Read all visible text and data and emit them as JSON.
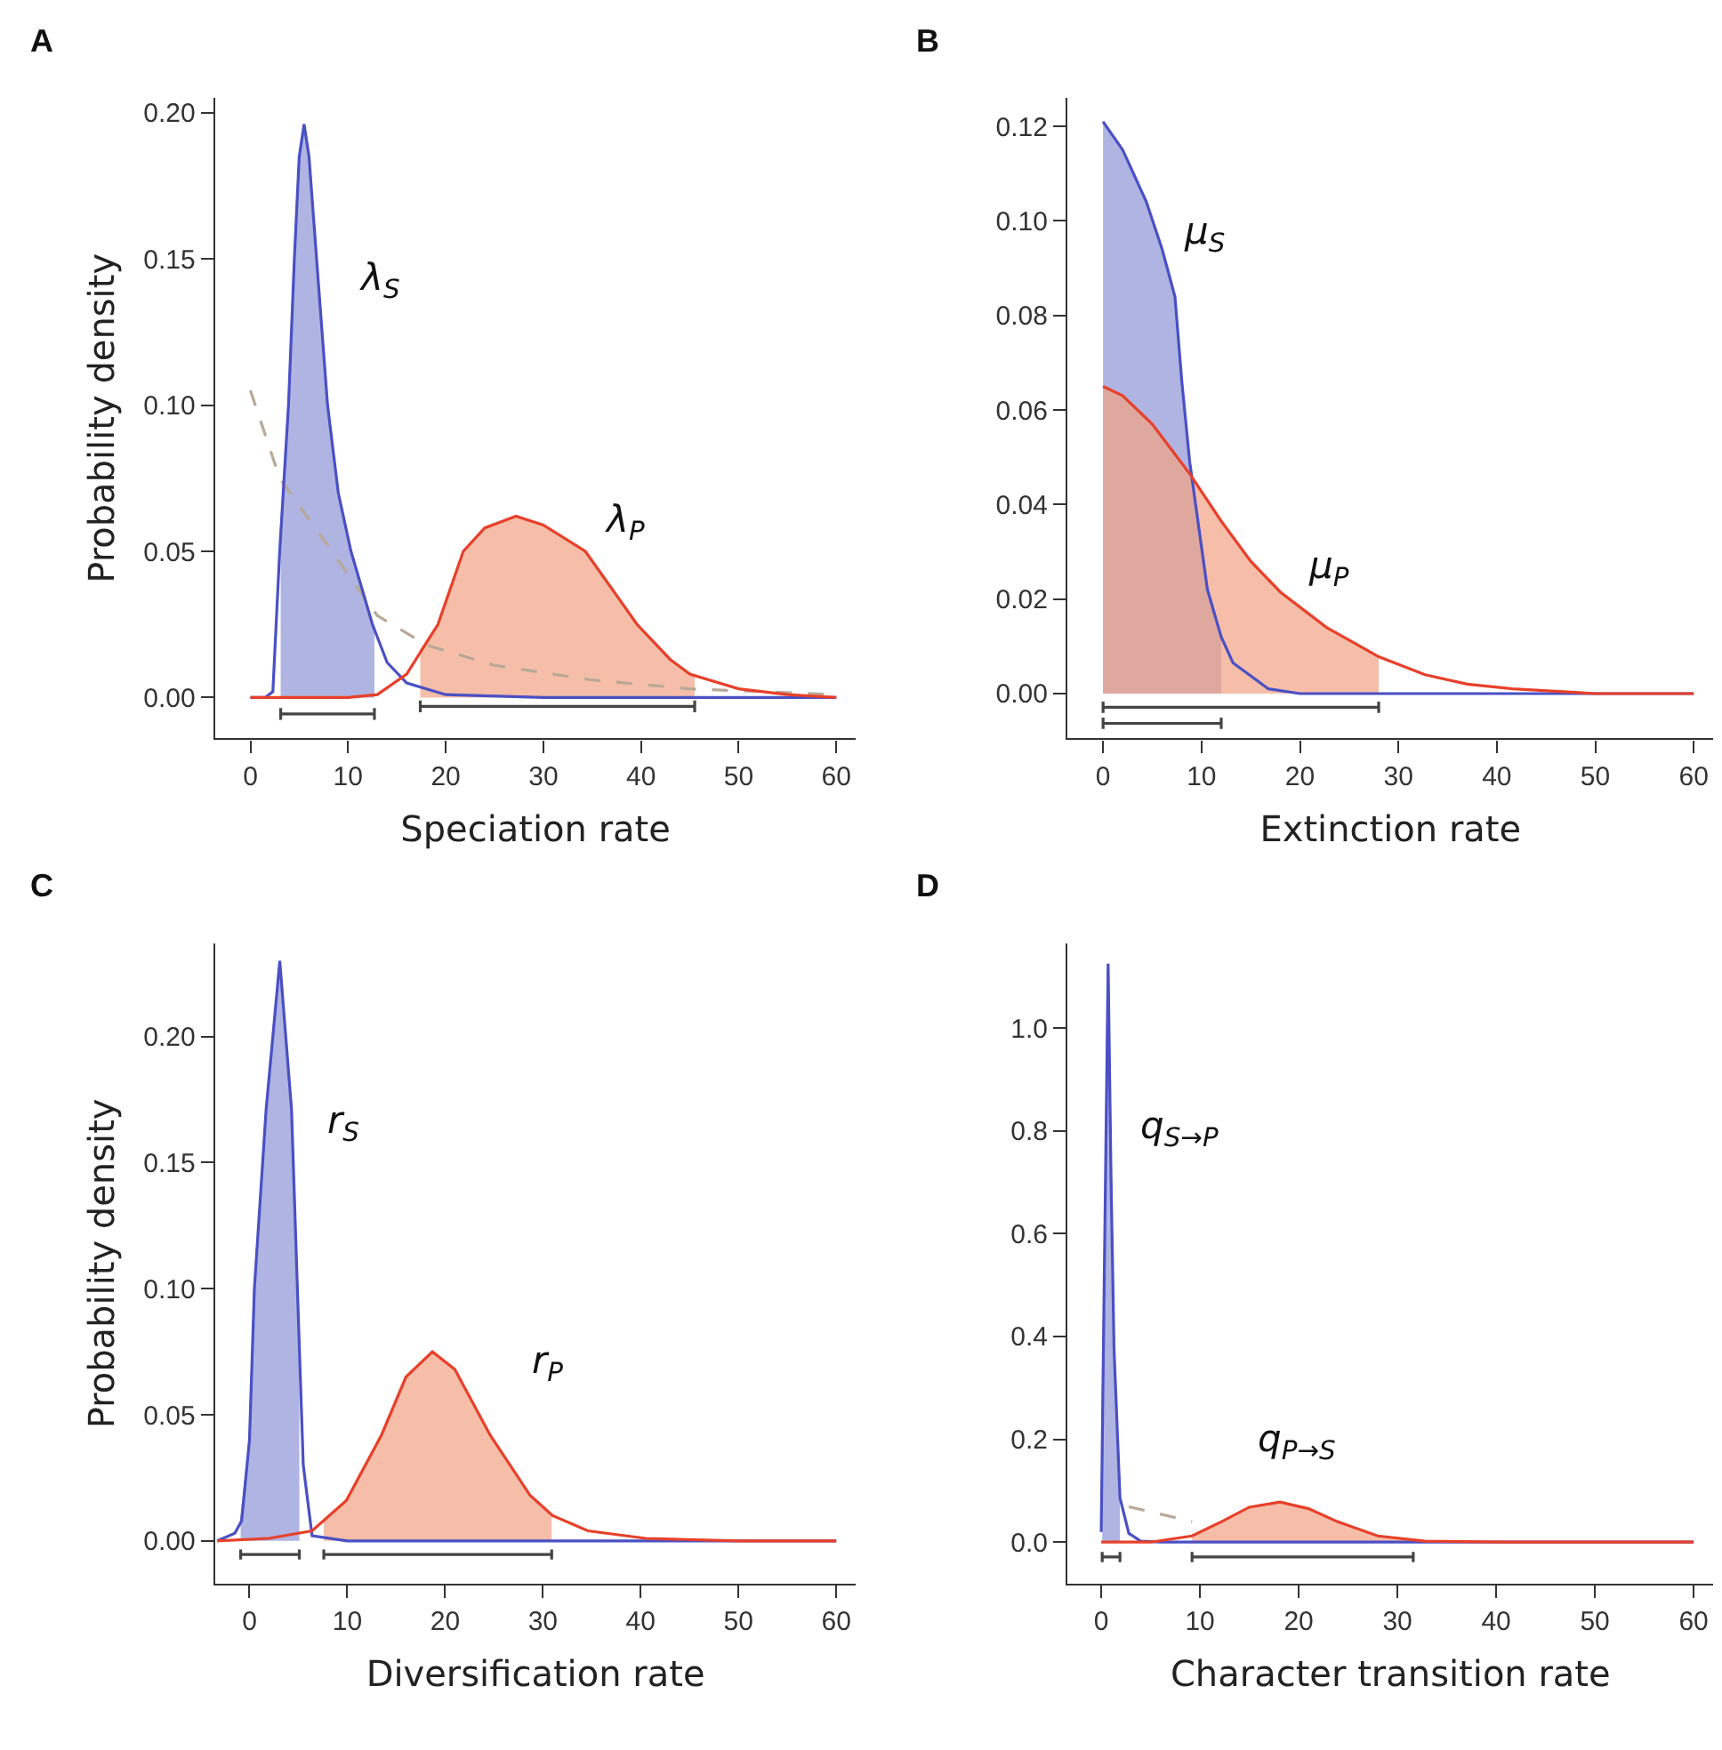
{
  "chart_data": [
    {
      "type": "line",
      "title": "A",
      "xlabel": "Speciation rate",
      "ylabel": "Probability density",
      "xlim": [
        -3.6,
        62
      ],
      "ylim": [
        -0.014,
        0.205
      ],
      "xticks": [
        0,
        10,
        20,
        30,
        40,
        50,
        60
      ],
      "yticks": [
        {
          "value": 0,
          "label": "0.00"
        },
        {
          "value": 0.05,
          "label": "0.05"
        },
        {
          "value": 0.1,
          "label": "0.10"
        },
        {
          "value": 0.15,
          "label": "0.15"
        },
        {
          "value": 0.2,
          "label": "0.20"
        }
      ],
      "line_style": "solid",
      "series": [
        {
          "type": "area",
          "color": "#8e94d6",
          "x": [
            3.1,
            3.9,
            4.5,
            5,
            5.5,
            6,
            7,
            7.9,
            9,
            10.3,
            12.5,
            12.7
          ],
          "values": [
            0.056,
            0.1,
            0.15,
            0.185,
            0.196,
            0.185,
            0.14,
            0.1,
            0.07,
            0.05,
            0.025,
            0.024
          ]
        },
        {
          "type": "area",
          "color": "#f2a283",
          "x": [
            17.4,
            19.2,
            21.8,
            24,
            27.2,
            30,
            34.3,
            39.6,
            43,
            45,
            45.5
          ],
          "values": [
            0.016,
            0.025,
            0.05,
            0.058,
            0.062,
            0.059,
            0.05,
            0.025,
            0.013,
            0.008,
            0.007
          ]
        },
        {
          "type": "line",
          "color": "#b8a898",
          "line_style": "dashed",
          "x": [
            0,
            3,
            13,
            18,
            25,
            35,
            45,
            60
          ],
          "values": [
            0.105,
            0.075,
            0.028,
            0.018,
            0.011,
            0.006,
            0.003,
            0.001
          ]
        },
        {
          "type": "line",
          "name": "λ$_{S}$",
          "color": "#4a50c4",
          "x": [
            0,
            1.5,
            2.3,
            3,
            3.9,
            4.5,
            5,
            5.5,
            6,
            7,
            7.9,
            9,
            10.3,
            12.5,
            14,
            16,
            20,
            30,
            60
          ],
          "values": [
            0,
            0,
            0.002,
            0.05,
            0.1,
            0.15,
            0.185,
            0.196,
            0.185,
            0.14,
            0.1,
            0.07,
            0.05,
            0.025,
            0.012,
            0.005,
            0.001,
            0,
            0
          ]
        },
        {
          "type": "line",
          "name": "λ$_{P}$",
          "color": "#e8402a",
          "x": [
            0,
            10,
            13,
            16,
            19.2,
            21.8,
            24,
            27.2,
            30,
            34.3,
            39.6,
            43,
            45,
            50,
            55,
            60
          ],
          "values": [
            0,
            0,
            0.001,
            0.008,
            0.025,
            0.05,
            0.058,
            0.062,
            0.059,
            0.05,
            0.025,
            0.013,
            0.008,
            0.003,
            0.001,
            0
          ]
        },
        {
          "type": "line",
          "color": "#444444",
          "x": [
            3.1,
            3.1,
            3.1,
            12.7,
            12.7,
            12.7
          ],
          "values": [
            -0.0076,
            -0.0036,
            -0.0056,
            -0.0056,
            -0.0076,
            -0.0036
          ]
        },
        {
          "type": "line",
          "color": "#444444",
          "x": [
            17.4,
            17.4,
            17.4,
            45.5,
            45.5,
            45.5
          ],
          "values": [
            -0.005,
            -0.001,
            -0.003,
            -0.003,
            -0.005,
            -0.001
          ]
        }
      ]
    },
    {
      "type": "line",
      "title": "B",
      "xlabel": "Extinction rate",
      "xlim": [
        -3.6,
        62
      ],
      "ylim": [
        -0.0095,
        0.126
      ],
      "xticks": [
        0,
        10,
        20,
        30,
        40,
        50,
        60
      ],
      "yticks": [
        {
          "value": 0,
          "label": "0.00"
        },
        {
          "value": 0.02,
          "label": "0.02"
        },
        {
          "value": 0.04,
          "label": "0.04"
        },
        {
          "value": 0.06,
          "label": "0.06"
        },
        {
          "value": 0.08,
          "label": "0.08"
        },
        {
          "value": 0.1,
          "label": "0.10"
        },
        {
          "value": 0.12,
          "label": "0.12"
        }
      ],
      "line_style": "solid",
      "series": [
        {
          "type": "area",
          "color": "#8e94d6",
          "x": [
            0,
            2,
            4.4,
            6,
            7.3,
            8,
            8.8,
            10.6,
            12
          ],
          "values": [
            0.121,
            0.115,
            0.104,
            0.094,
            0.084,
            0.066,
            0.049,
            0.022,
            0.012
          ]
        },
        {
          "type": "area",
          "color": "#f2a283",
          "x": [
            0,
            2,
            5,
            8.8,
            12,
            15,
            18,
            22.7,
            28
          ],
          "values": [
            0.065,
            0.063,
            0.057,
            0.0465,
            0.0365,
            0.028,
            0.0215,
            0.014,
            0.0078
          ]
        },
        {
          "type": "line",
          "name": "μ$_{S}$",
          "color": "#4a50c4",
          "x": [
            0,
            2,
            4.4,
            6,
            7.3,
            8,
            8.8,
            10.6,
            12,
            13.2,
            16.8,
            20,
            60
          ],
          "values": [
            0.121,
            0.115,
            0.104,
            0.094,
            0.084,
            0.066,
            0.049,
            0.022,
            0.012,
            0.0065,
            0.001,
            0,
            0
          ]
        },
        {
          "type": "line",
          "name": "μ$_{P}$",
          "color": "#e8402a",
          "x": [
            0,
            2,
            5,
            8.8,
            12,
            15,
            18,
            22.7,
            28,
            32.7,
            37,
            41.6,
            50,
            60
          ],
          "values": [
            0.065,
            0.063,
            0.057,
            0.0465,
            0.0365,
            0.028,
            0.0215,
            0.014,
            0.0078,
            0.004,
            0.002,
            0.001,
            0,
            0
          ]
        },
        {
          "type": "line",
          "color": "#444444",
          "x": [
            0,
            0,
            0,
            12,
            12,
            12
          ],
          "values": [
            -0.0075,
            -0.0051,
            -0.0063,
            -0.0063,
            -0.0075,
            -0.0051
          ]
        },
        {
          "type": "line",
          "color": "#444444",
          "x": [
            0,
            0,
            0,
            28,
            28,
            28
          ],
          "values": [
            -0.0041,
            -0.0017,
            -0.0029,
            -0.0029,
            -0.0041,
            -0.0017
          ]
        }
      ]
    },
    {
      "type": "line",
      "title": "C",
      "xlabel": "Diversification rate",
      "ylabel": "Probability density",
      "xlim": [
        -3.5,
        62
      ],
      "ylim": [
        -0.017,
        0.237
      ],
      "xticks": [
        0,
        10,
        20,
        30,
        40,
        50,
        60
      ],
      "yticks": [
        {
          "value": 0,
          "label": "0.00"
        },
        {
          "value": 0.05,
          "label": "0.05"
        },
        {
          "value": 0.1,
          "label": "0.10"
        },
        {
          "value": 0.15,
          "label": "0.15"
        },
        {
          "value": 0.2,
          "label": "0.20"
        }
      ],
      "line_style": "solid",
      "series": [
        {
          "type": "area",
          "color": "#8e94d6",
          "x": [
            -0.9,
            0,
            0.5,
            1.7,
            3.1,
            4.3,
            4.9,
            5.1
          ],
          "values": [
            0.007,
            0.04,
            0.1,
            0.171,
            0.23,
            0.171,
            0.1,
            0.077
          ]
        },
        {
          "type": "area",
          "color": "#f2a283",
          "x": [
            7.6,
            9.9,
            13.5,
            16,
            18.7,
            21,
            24.6,
            28.7,
            30.9
          ],
          "values": [
            0.008,
            0.016,
            0.042,
            0.065,
            0.075,
            0.068,
            0.042,
            0.018,
            0.01
          ]
        },
        {
          "type": "line",
          "name": "r$_{S}$",
          "color": "#4a50c4",
          "x": [
            -3.3,
            -1.5,
            -0.8,
            0,
            0.5,
            1.7,
            3.1,
            4.3,
            4.9,
            5.5,
            6.4,
            10,
            60
          ],
          "values": [
            0,
            0.003,
            0.008,
            0.04,
            0.1,
            0.171,
            0.23,
            0.171,
            0.1,
            0.03,
            0.002,
            0,
            0
          ]
        },
        {
          "type": "line",
          "name": "r$_{P}$",
          "color": "#e8402a",
          "x": [
            -3.3,
            2,
            6.4,
            9.9,
            13.5,
            16,
            18.7,
            21,
            24.6,
            28.7,
            31,
            34.6,
            40.5,
            50,
            60
          ],
          "values": [
            0,
            0.001,
            0.004,
            0.016,
            0.042,
            0.065,
            0.075,
            0.068,
            0.042,
            0.018,
            0.01,
            0.004,
            0.001,
            0,
            0
          ]
        },
        {
          "type": "line",
          "color": "#444444",
          "x": [
            -0.9,
            -0.9,
            -0.9,
            5.1,
            5.1,
            5.1
          ],
          "values": [
            -0.0074,
            -0.0034,
            -0.0054,
            -0.0054,
            -0.0074,
            -0.0034
          ]
        },
        {
          "type": "line",
          "color": "#444444",
          "x": [
            7.6,
            7.6,
            7.6,
            30.9,
            30.9,
            30.9
          ],
          "values": [
            -0.0074,
            -0.0034,
            -0.0054,
            -0.0054,
            -0.0074,
            -0.0034
          ]
        }
      ]
    },
    {
      "type": "line",
      "title": "D",
      "xlabel": "Character transition rate",
      "xlim": [
        -3.4,
        62
      ],
      "ylim": [
        -0.081,
        1.165
      ],
      "xticks": [
        0,
        10,
        20,
        30,
        40,
        50,
        60
      ],
      "yticks": [
        {
          "value": 0,
          "label": "0.0"
        },
        {
          "value": 0.2,
          "label": "0.2"
        },
        {
          "value": 0.4,
          "label": "0.4"
        },
        {
          "value": 0.6,
          "label": "0.6"
        },
        {
          "value": 0.8,
          "label": "0.8"
        },
        {
          "value": 1.0,
          "label": "1.0"
        }
      ],
      "line_style": "solid",
      "series": [
        {
          "type": "area",
          "color": "#8e94d6",
          "x": [
            0.1,
            0.3,
            0.7,
            1.0,
            1.3,
            1.9
          ],
          "values": [
            0.2,
            0.5,
            1.125,
            0.7,
            0.375,
            0.086
          ]
        },
        {
          "type": "area",
          "color": "#f2a283",
          "x": [
            9.2,
            12.2,
            15,
            18.1,
            21,
            23.9,
            28,
            31.6
          ],
          "values": [
            0.012,
            0.04,
            0.068,
            0.078,
            0.065,
            0.04,
            0.012,
            0.004
          ]
        },
        {
          "type": "line",
          "color": "#b8a898",
          "line_style": "dashed",
          "x": [
            2.8,
            9.2
          ],
          "values": [
            0.069,
            0.04
          ]
        },
        {
          "type": "line",
          "name": "q$_{S→P}$",
          "color": "#4a50c4",
          "x": [
            0,
            0.3,
            0.7,
            1.0,
            1.3,
            1.9,
            2.8,
            4,
            6,
            60
          ],
          "values": [
            0.02,
            0.5,
            1.125,
            0.7,
            0.375,
            0.086,
            0.017,
            0.002,
            0,
            0
          ]
        },
        {
          "type": "line",
          "name": "q$_{P→S}$",
          "color": "#e8402a",
          "x": [
            0,
            5,
            9.2,
            12.2,
            15,
            18.1,
            21,
            23.9,
            28,
            32.8,
            40,
            60
          ],
          "values": [
            0,
            0,
            0.012,
            0.04,
            0.068,
            0.078,
            0.065,
            0.04,
            0.012,
            0.002,
            0,
            0
          ]
        },
        {
          "type": "line",
          "color": "#444444",
          "x": [
            0.1,
            0.1,
            0.1,
            1.9,
            1.9,
            1.9
          ],
          "values": [
            -0.039,
            -0.019,
            -0.029,
            -0.029,
            -0.039,
            -0.019
          ]
        },
        {
          "type": "line",
          "color": "#444444",
          "x": [
            9.2,
            9.2,
            9.2,
            31.6,
            31.6,
            31.6
          ],
          "values": [
            -0.039,
            -0.019,
            -0.029,
            -0.029,
            -0.039,
            -0.019
          ]
        }
      ]
    }
  ]
}
